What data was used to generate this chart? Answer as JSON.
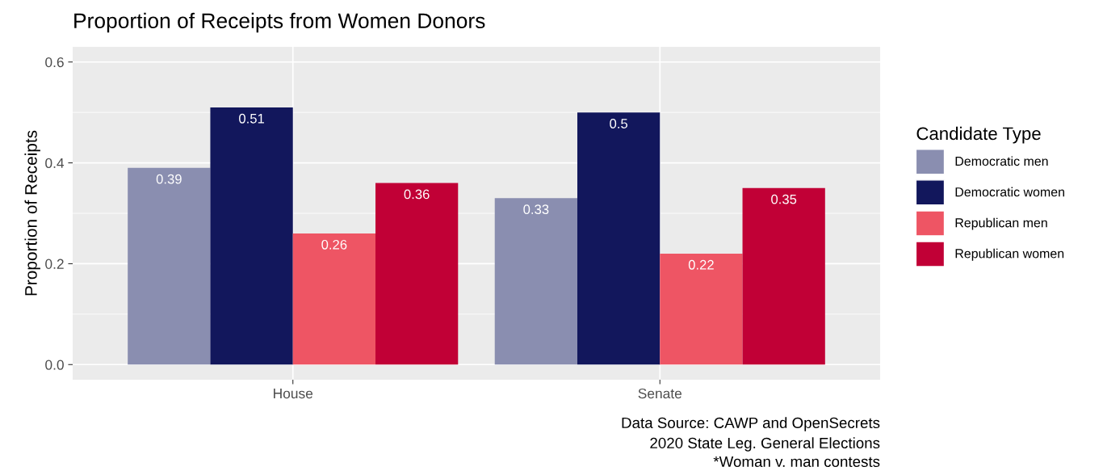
{
  "chart_data": {
    "type": "bar",
    "title": "Proportion of Receipts from Women Donors",
    "ylabel": "Proportion of Receipts",
    "legend_title": "Candidate Type",
    "categories": [
      "House",
      "Senate"
    ],
    "series": [
      {
        "name": "Democratic men",
        "color": "#8a8eb0",
        "values": [
          0.39,
          0.33
        ]
      },
      {
        "name": "Democratic women",
        "color": "#12175c",
        "values": [
          0.51,
          0.5
        ]
      },
      {
        "name": "Republican men",
        "color": "#ee5564",
        "values": [
          0.26,
          0.22
        ]
      },
      {
        "name": "Republican women",
        "color": "#c10036",
        "values": [
          0.36,
          0.35
        ]
      }
    ],
    "ylim": [
      -0.03,
      0.63
    ],
    "yticks": [
      {
        "value": 0,
        "label": "0.0"
      },
      {
        "value": 0.2,
        "label": "0.2"
      },
      {
        "value": 0.4,
        "label": "0.4"
      },
      {
        "value": 0.6,
        "label": "0.6"
      }
    ],
    "grid": true,
    "legend": "right",
    "data_labels": true,
    "annotations": [
      "Data Source: CAWP and OpenSecrets",
      "2020 State Leg. General Elections",
      "*Woman v. man contests"
    ]
  }
}
